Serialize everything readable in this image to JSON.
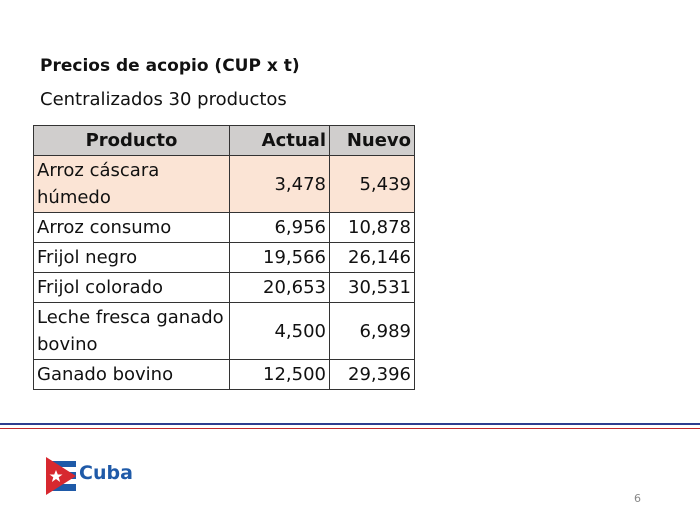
{
  "title": "Precios de acopio (CUP x t)",
  "subtitle": "Centralizados 30 productos",
  "table": {
    "header": [
      "Producto",
      "Actual",
      "Nuevo"
    ],
    "rows": [
      [
        "Arroz cáscara húmedo",
        "3,478",
        "5,439"
      ],
      [
        "Arroz consumo",
        "6,956",
        "10,878"
      ],
      [
        "Frijol negro",
        "19,566",
        "26,146"
      ],
      [
        "Frijol colorado",
        "20,653",
        "30,531"
      ],
      [
        "Leche fresca ganado bovino",
        "4,500",
        "6,989"
      ],
      [
        "Ganado bovino",
        "12,500",
        "29,396"
      ]
    ]
  },
  "logo": "Cuba",
  "page_number": "6"
}
